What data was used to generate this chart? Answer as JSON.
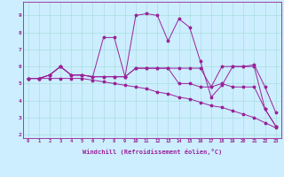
{
  "xlabel": "Windchill (Refroidissement éolien,°C)",
  "background_color": "#cceeff",
  "grid_color": "#aadddd",
  "line_color": "#992299",
  "xlim": [
    -0.5,
    23.5
  ],
  "ylim": [
    1.8,
    9.8
  ],
  "yticks": [
    2,
    3,
    4,
    5,
    6,
    7,
    8,
    9
  ],
  "xticks": [
    0,
    1,
    2,
    3,
    4,
    5,
    6,
    7,
    8,
    9,
    10,
    11,
    12,
    13,
    14,
    15,
    16,
    17,
    18,
    19,
    20,
    21,
    22,
    23
  ],
  "series": [
    [
      5.3,
      5.3,
      5.5,
      6.0,
      5.5,
      5.5,
      5.4,
      7.7,
      7.7,
      5.4,
      9.0,
      9.1,
      9.0,
      7.5,
      8.8,
      8.3,
      6.3,
      4.2,
      4.9,
      6.0,
      6.0,
      6.1,
      4.8,
      3.3
    ],
    [
      5.3,
      5.3,
      5.5,
      6.0,
      5.5,
      5.5,
      5.4,
      5.4,
      5.4,
      5.4,
      5.9,
      5.9,
      5.9,
      5.9,
      5.9,
      5.9,
      5.9,
      4.8,
      6.0,
      6.0,
      6.0,
      6.0,
      3.5,
      2.5
    ],
    [
      5.3,
      5.3,
      5.5,
      6.0,
      5.5,
      5.5,
      5.4,
      5.4,
      5.4,
      5.4,
      5.9,
      5.9,
      5.9,
      5.9,
      5.0,
      5.0,
      4.8,
      4.8,
      5.0,
      4.8,
      4.8,
      4.8,
      3.5,
      2.5
    ],
    [
      5.3,
      5.3,
      5.3,
      5.3,
      5.3,
      5.3,
      5.2,
      5.1,
      5.0,
      4.9,
      4.8,
      4.7,
      4.5,
      4.4,
      4.2,
      4.1,
      3.9,
      3.7,
      3.6,
      3.4,
      3.2,
      3.0,
      2.7,
      2.4
    ]
  ]
}
